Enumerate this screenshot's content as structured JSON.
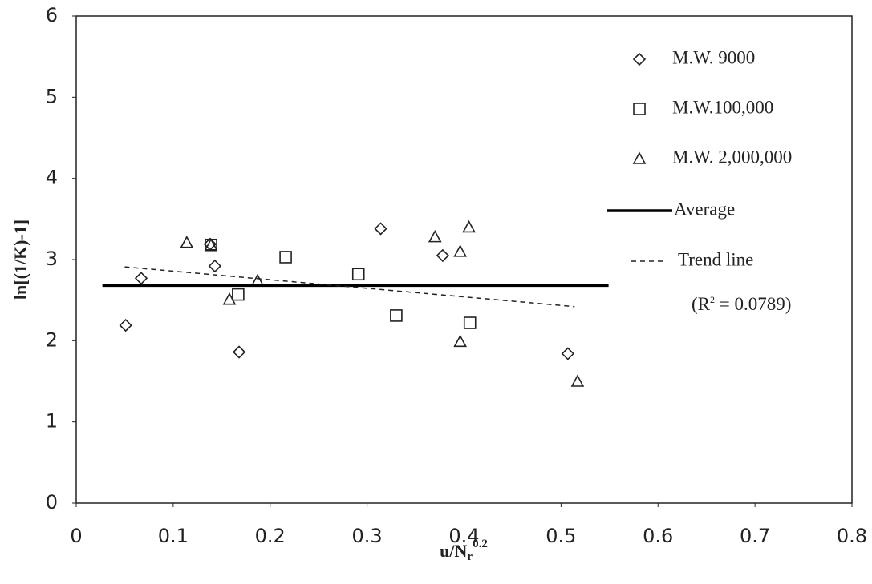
{
  "chart_data": {
    "type": "scatter",
    "x_label": {
      "base": "u/N",
      "sub": "r",
      "sup": "0.2"
    },
    "y_label": "ln[(1/K)-1]",
    "annotation": {
      "base": "(R",
      "sup": "2",
      "rest": " = 0.0789)"
    },
    "xlim": [
      0,
      0.8
    ],
    "ylim": [
      0,
      6
    ],
    "xticks": [
      0,
      0.1,
      0.2,
      0.3,
      0.4,
      0.5,
      0.6,
      0.7,
      0.8
    ],
    "yticks": [
      0,
      1,
      2,
      3,
      4,
      5,
      6
    ],
    "series": [
      {
        "name": "M.W. 9000",
        "marker": "diamond",
        "color": "#222222",
        "x": [
          0.051,
          0.067,
          0.138,
          0.143,
          0.168,
          0.314,
          0.378,
          0.507
        ],
        "values": [
          2.19,
          2.77,
          3.19,
          2.92,
          1.86,
          3.38,
          3.05,
          1.84
        ]
      },
      {
        "name": "M.W.100,000",
        "marker": "square",
        "color": "#222222",
        "x": [
          0.139,
          0.167,
          0.216,
          0.291,
          0.33,
          0.406
        ],
        "values": [
          3.18,
          2.57,
          3.03,
          2.82,
          2.31,
          2.22
        ]
      },
      {
        "name": "M.W. 2,000,000",
        "marker": "triangle",
        "color": "#222222",
        "x": [
          0.114,
          0.139,
          0.158,
          0.187,
          0.37,
          0.405,
          0.396,
          0.396,
          0.517
        ],
        "values": [
          3.21,
          3.18,
          2.51,
          2.74,
          3.28,
          3.4,
          3.1,
          1.99,
          1.5
        ]
      },
      {
        "name": "Average",
        "marker": "solid-line",
        "color": "#000000",
        "x": [
          0.027,
          0.549
        ],
        "values": [
          2.68,
          2.68
        ]
      },
      {
        "name": "Trend line",
        "marker": "dashed-line",
        "color": "#222222",
        "x": [
          0.05,
          0.514
        ],
        "values": [
          2.91,
          2.42
        ]
      }
    ]
  }
}
